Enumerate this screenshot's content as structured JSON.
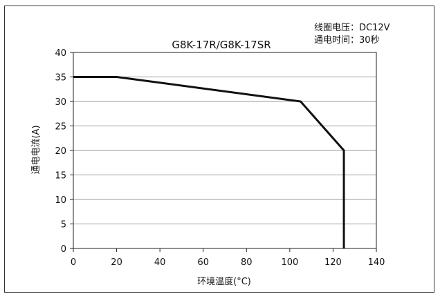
{
  "chart_data": {
    "type": "line",
    "title": "G8K-17R/G8K-17SR",
    "annotations": [
      "线圈电压：DC12V",
      "通电时间：30秒"
    ],
    "xlabel": "环境温度(°C)",
    "ylabel": "通电电流(A)",
    "xlim": [
      0,
      140
    ],
    "ylim": [
      0,
      40
    ],
    "x_ticks": [
      0,
      20,
      40,
      60,
      80,
      100,
      120,
      140
    ],
    "y_ticks": [
      0,
      5,
      10,
      15,
      20,
      25,
      30,
      35,
      40
    ],
    "grid": true,
    "series": [
      {
        "x": [
          0,
          20,
          105,
          125,
          125
        ],
        "y": [
          35,
          35,
          30,
          20,
          0
        ]
      }
    ]
  }
}
